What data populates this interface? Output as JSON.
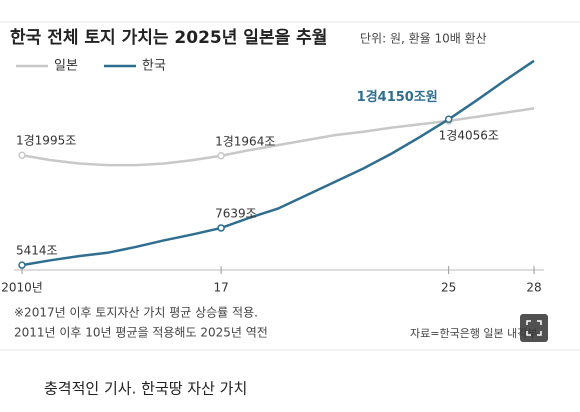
{
  "chart_data": {
    "type": "line",
    "title": "한국 전체 토지 가치는 2025년 일본을 추월",
    "subtitle": "단위: 원, 환율 10배 환산",
    "x": [
      2010,
      2011,
      2012,
      2013,
      2014,
      2015,
      2016,
      2017,
      2018,
      2019,
      2020,
      2021,
      2022,
      2023,
      2024,
      2025,
      2026,
      2027,
      2028
    ],
    "series": [
      {
        "name": "일본",
        "color": "#c8c8c8",
        "values": [
          11995,
          11700,
          11500,
          11400,
          11400,
          11500,
          11700,
          11964,
          12300,
          12600,
          12900,
          13200,
          13400,
          13650,
          13850,
          14056,
          14300,
          14550,
          14800
        ],
        "value_labels": [
          "1경1995조",
          null,
          null,
          null,
          null,
          null,
          null,
          "1경1964조",
          null,
          null,
          null,
          null,
          null,
          null,
          null,
          "1경4056조",
          null,
          null,
          null
        ]
      },
      {
        "name": "한국",
        "color": "#2f6e8f",
        "values": [
          5414,
          5700,
          5950,
          6150,
          6500,
          6900,
          7250,
          7639,
          8250,
          8800,
          9600,
          10400,
          11200,
          12100,
          13100,
          14150,
          15300,
          16500,
          17650
        ],
        "value_labels": [
          "5414조",
          null,
          null,
          null,
          null,
          null,
          null,
          "7639조",
          null,
          null,
          null,
          null,
          null,
          null,
          null,
          "1경4150조원",
          null,
          null,
          null
        ]
      }
    ],
    "xlim": [
      2010,
      2028
    ],
    "xticks": [
      {
        "value": 2010,
        "label": "2010년"
      },
      17,
      25,
      28
    ],
    "ylim": [
      5000,
      18000
    ],
    "notes": [
      "※2017년 이후 토지자산 가치 평균 상승률 적용.",
      "2011년 이후 10년 평균을 적용해도 2025년 역전"
    ],
    "source": "자료=한국은행 일본 내각부"
  },
  "caption": "충격적인 기사. 한국땅 자산 가치"
}
